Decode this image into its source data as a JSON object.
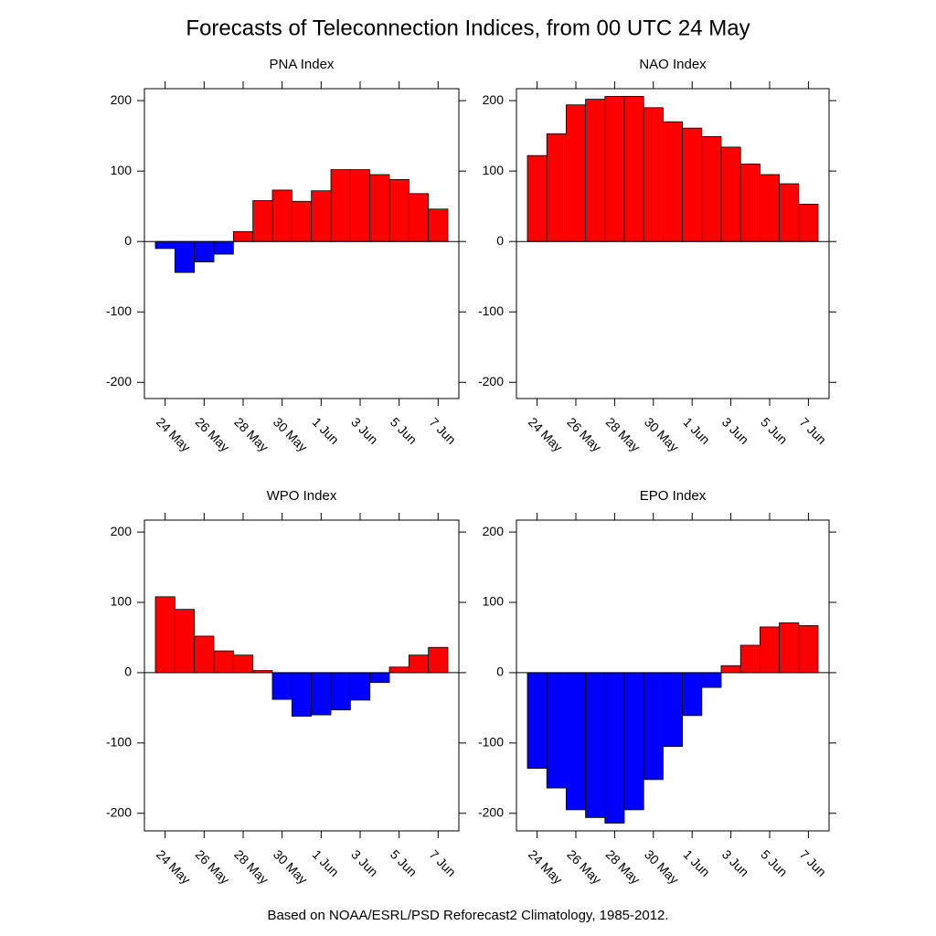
{
  "title": "Forecasts of Teleconnection Indices, from 00 UTC 24 May",
  "note": "Based on NOAA/ESRL/PSD Reforecast2 Climatology, 1985-2012.",
  "chart_data": [
    {
      "type": "bar",
      "title": "PNA Index",
      "categories": [
        "24 May",
        null,
        "26 May",
        null,
        "28 May",
        null,
        "30 May",
        null,
        "1 Jun",
        null,
        "3 Jun",
        null,
        "5 Jun",
        null,
        "7 Jun"
      ],
      "values": [
        -10,
        -44,
        -29,
        -18,
        14,
        58,
        73,
        57,
        72,
        102,
        102,
        95,
        88,
        68,
        46
      ],
      "positive_color": "#ff0000",
      "negative_color": "#0000ff",
      "ylim": [
        -223,
        217
      ],
      "yticks": [
        -200,
        -100,
        0,
        100,
        200
      ]
    },
    {
      "type": "bar",
      "title": "NAO Index",
      "categories": [
        "24 May",
        null,
        "26 May",
        null,
        "28 May",
        null,
        "30 May",
        null,
        "1 Jun",
        null,
        "3 Jun",
        null,
        "5 Jun",
        null,
        "7 Jun"
      ],
      "values": [
        122,
        153,
        194,
        202,
        206,
        206,
        190,
        170,
        161,
        149,
        134,
        110,
        95,
        82,
        53
      ],
      "positive_color": "#ff0000",
      "negative_color": "#0000ff",
      "ylim": [
        -223,
        217
      ],
      "yticks": [
        -200,
        -100,
        0,
        100,
        200
      ]
    },
    {
      "type": "bar",
      "title": "WPO Index",
      "categories": [
        "24 May",
        null,
        "26 May",
        null,
        "28 May",
        null,
        "30 May",
        null,
        "1 Jun",
        null,
        "3 Jun",
        null,
        "5 Jun",
        null,
        "7 Jun"
      ],
      "values": [
        108,
        90,
        52,
        31,
        25,
        3,
        -38,
        -62,
        -60,
        -53,
        -39,
        -14,
        8,
        25,
        36
      ],
      "positive_color": "#ff0000",
      "negative_color": "#0000ff",
      "ylim": [
        -225,
        217
      ],
      "yticks": [
        -200,
        -100,
        0,
        100,
        200
      ]
    },
    {
      "type": "bar",
      "title": "EPO Index",
      "categories": [
        "24 May",
        null,
        "26 May",
        null,
        "28 May",
        null,
        "30 May",
        null,
        "1 Jun",
        null,
        "3 Jun",
        null,
        "5 Jun",
        null,
        "7 Jun"
      ],
      "values": [
        -136,
        -164,
        -195,
        -206,
        -214,
        -195,
        -152,
        -105,
        -61,
        -21,
        10,
        39,
        65,
        71,
        67
      ],
      "positive_color": "#ff0000",
      "negative_color": "#0000ff",
      "ylim": [
        -225,
        217
      ],
      "yticks": [
        -200,
        -100,
        0,
        100,
        200
      ]
    }
  ]
}
